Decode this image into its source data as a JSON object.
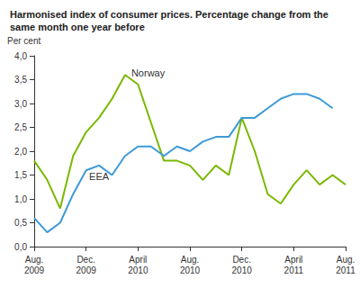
{
  "chart_data": {
    "type": "line",
    "title": "Harmonised index of consumer prices. Percentage change from the\nsame month one year before",
    "y_label": "Per cent",
    "categories": [
      "Aug.\n2009",
      null,
      null,
      null,
      "Dec.\n2009",
      null,
      null,
      null,
      "April\n2010",
      null,
      null,
      null,
      "Aug.\n2010",
      null,
      null,
      null,
      "Dec.\n2010",
      null,
      null,
      null,
      "April\n2011",
      null,
      null,
      null,
      "Aug.\n2011"
    ],
    "series": [
      {
        "name": "Norway",
        "color": "#7ab800",
        "values": [
          1.8,
          1.4,
          0.8,
          1.9,
          2.4,
          2.7,
          3.1,
          3.6,
          3.4,
          2.6,
          1.8,
          1.8,
          1.7,
          1.4,
          1.7,
          1.5,
          2.7,
          2.0,
          1.1,
          0.9,
          1.3,
          1.6,
          1.3,
          1.5,
          1.3
        ]
      },
      {
        "name": "EEA",
        "color": "#3d9ad6",
        "values": [
          0.6,
          0.3,
          0.5,
          1.1,
          1.6,
          1.7,
          1.5,
          1.9,
          2.1,
          2.1,
          1.9,
          2.1,
          2.0,
          2.2,
          2.3,
          2.3,
          2.7,
          2.7,
          2.9,
          3.1,
          3.2,
          3.2,
          3.1,
          2.9,
          null
        ]
      }
    ],
    "ylim": [
      0,
      4
    ],
    "yticks": [
      {
        "value": 0,
        "label": "0,0"
      },
      {
        "value": 0.5,
        "label": "0,5"
      },
      {
        "value": 1,
        "label": "1,0"
      },
      {
        "value": 1.5,
        "label": "1,5"
      },
      {
        "value": 2,
        "label": "2,0"
      },
      {
        "value": 2.5,
        "label": "2,5"
      },
      {
        "value": 3,
        "label": "3,0"
      },
      {
        "value": 3.5,
        "label": "3,5"
      },
      {
        "value": 4,
        "label": "4,0"
      }
    ],
    "grid": false
  }
}
